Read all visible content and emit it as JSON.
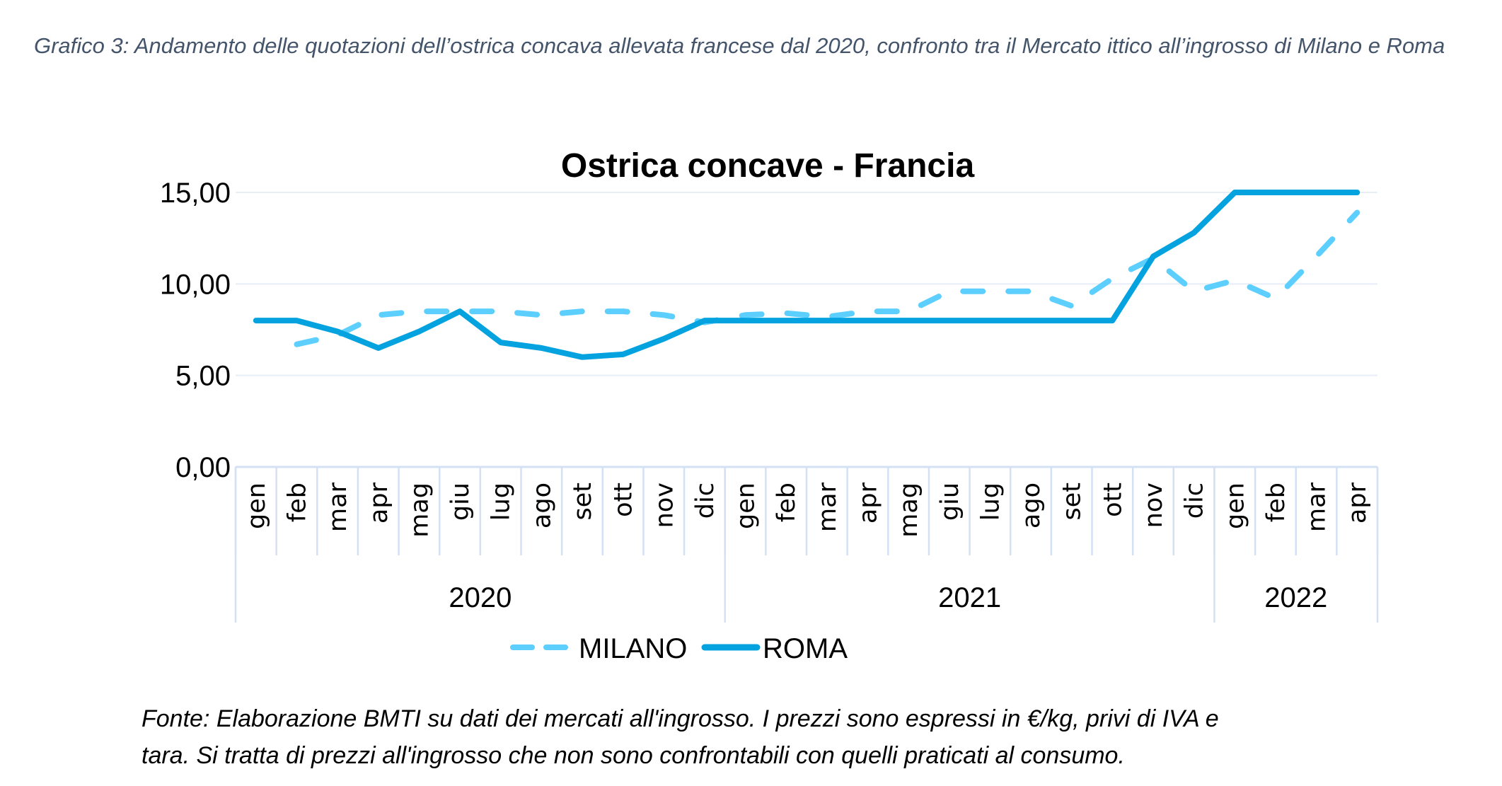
{
  "caption": "Grafico 3: Andamento delle quotazioni dell’ostrica concava allevata francese dal 2020, confronto tra il Mercato ittico all’ingrosso di Milano e Roma",
  "footer_lines": [
    "Fonte: Elaborazione BMTI su dati dei mercati all'ingrosso. I prezzi sono espressi in €/kg, privi di IVA e",
    "tara. Si tratta di prezzi all'ingrosso che non sono confrontabili con quelli praticati al consumo."
  ],
  "chart_data": {
    "type": "line",
    "title": "Ostrica concave - Francia",
    "xlabel": "",
    "ylabel": "",
    "ylim": [
      0,
      15
    ],
    "yticks": [
      "0,00",
      "5,00",
      "10,00",
      "15,00"
    ],
    "ytick_values": [
      0,
      5,
      10,
      15
    ],
    "grid": true,
    "legend_position": "bottom",
    "categories": [
      "gen",
      "feb",
      "mar",
      "apr",
      "mag",
      "giu",
      "lug",
      "ago",
      "set",
      "ott",
      "nov",
      "dic",
      "gen",
      "feb",
      "mar",
      "apr",
      "mag",
      "giu",
      "lug",
      "ago",
      "set",
      "ott",
      "nov",
      "dic",
      "gen",
      "feb",
      "mar",
      "apr"
    ],
    "year_groups": [
      {
        "label": "2020",
        "count": 12
      },
      {
        "label": "2021",
        "count": 12
      },
      {
        "label": "2022",
        "count": 4
      }
    ],
    "series": [
      {
        "name": "MILANO",
        "style": "dashed",
        "color": "#5ccfff",
        "values": [
          null,
          6.7,
          7.2,
          8.3,
          8.5,
          8.5,
          8.5,
          8.3,
          8.5,
          8.5,
          8.3,
          7.9,
          8.3,
          8.4,
          8.2,
          8.5,
          8.5,
          9.6,
          9.6,
          9.6,
          8.8,
          10.3,
          11.4,
          9.6,
          10.2,
          9.2,
          11.5,
          13.9
        ]
      },
      {
        "name": "ROMA",
        "style": "solid",
        "color": "#04a2df",
        "values": [
          8.0,
          8.0,
          7.4,
          6.5,
          7.4,
          8.5,
          6.8,
          6.5,
          6.0,
          6.15,
          7.0,
          8.0,
          8.0,
          8.0,
          8.0,
          8.0,
          8.0,
          8.0,
          8.0,
          8.0,
          8.0,
          8.0,
          11.5,
          12.8,
          15.0,
          15.0,
          15.0,
          15.0
        ]
      }
    ]
  },
  "colors": {
    "caption": "#44546a",
    "grid": "#e6eef8",
    "axis": "#d4e1f4"
  }
}
